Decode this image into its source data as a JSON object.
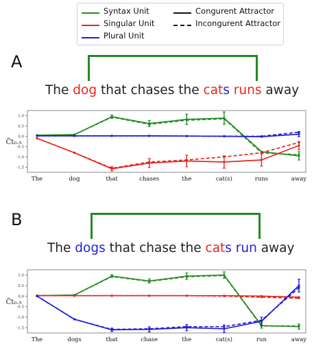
{
  "legend": {
    "items": [
      {
        "label": "Syntax Unit",
        "color": "#228B22",
        "style": "solid"
      },
      {
        "label": "Singular Unit",
        "color": "#e8251e",
        "style": "solid"
      },
      {
        "label": "Plural Unit",
        "color": "#1f1fd6",
        "style": "solid"
      },
      {
        "label": "Congurent Attractor",
        "color": "#111111",
        "style": "solid"
      },
      {
        "label": "Incongurent Attractor",
        "color": "#111111",
        "style": "dashed"
      }
    ]
  },
  "panels": [
    {
      "letter": "A",
      "sentence": [
        {
          "text": "The ",
          "color": "#222222"
        },
        {
          "text": "dog",
          "color": "#e8251e"
        },
        {
          "text": " that chases the ",
          "color": "#222222"
        },
        {
          "text": "cat",
          "color": "#e8251e"
        },
        {
          "text": "s",
          "color": "#1f1fd6"
        },
        {
          "text": " ",
          "color": "#222222"
        },
        {
          "text": "runs",
          "color": "#e8251e"
        },
        {
          "text": " away",
          "color": "#222222"
        }
      ]
    },
    {
      "letter": "B",
      "sentence": [
        {
          "text": "The ",
          "color": "#222222"
        },
        {
          "text": "dogs",
          "color": "#1f1fd6"
        },
        {
          "text": " that chase the ",
          "color": "#222222"
        },
        {
          "text": "cat",
          "color": "#e8251e"
        },
        {
          "text": "s",
          "color": "#1f1fd6"
        },
        {
          "text": " ",
          "color": "#222222"
        },
        {
          "text": "run",
          "color": "#1f1fd6"
        },
        {
          "text": " away",
          "color": "#222222"
        }
      ]
    }
  ],
  "chart_data": [
    {
      "type": "line",
      "ylabel": "C̃t₀.₅",
      "ylim": [
        -1.75,
        1.25
      ],
      "yticks": [
        "1.0",
        "0.5",
        "0.0",
        "-0.5",
        "-1.0",
        "-1.5"
      ],
      "ytick_values": [
        1.0,
        0.5,
        0.0,
        -0.5,
        -1.0,
        -1.5
      ],
      "categories": [
        "The",
        "dog",
        "that",
        "chases",
        "the",
        "cat(s)",
        "runs",
        "away"
      ],
      "grid": false,
      "series": [
        {
          "unit": "Syntax",
          "attractor": "congruent",
          "color": "#228B22",
          "dashed": false,
          "values": [
            0.05,
            0.08,
            0.95,
            0.62,
            0.82,
            0.88,
            -0.75,
            -0.95
          ]
        },
        {
          "unit": "Syntax",
          "attractor": "incongruent",
          "color": "#228B22",
          "dashed": true,
          "values": [
            0.05,
            0.08,
            0.93,
            0.58,
            0.78,
            0.85,
            -0.8,
            -0.9
          ]
        },
        {
          "unit": "Singular",
          "attractor": "congruent",
          "color": "#e8251e",
          "dashed": false,
          "values": [
            -0.1,
            -0.8,
            -1.58,
            -1.3,
            -1.2,
            -1.25,
            -1.15,
            -0.45
          ]
        },
        {
          "unit": "Singular",
          "attractor": "incongruent",
          "color": "#e8251e",
          "dashed": true,
          "values": [
            -0.1,
            -0.8,
            -1.55,
            -1.25,
            -1.15,
            -1.0,
            -0.8,
            -0.3
          ]
        },
        {
          "unit": "Plural",
          "attractor": "congruent",
          "color": "#1f1fd6",
          "dashed": false,
          "values": [
            0.02,
            0.02,
            0.02,
            0.02,
            0.01,
            0.0,
            -0.02,
            0.1
          ]
        },
        {
          "unit": "Plural",
          "attractor": "incongruent",
          "color": "#1f1fd6",
          "dashed": true,
          "values": [
            0.02,
            0.02,
            0.02,
            0.02,
            0.01,
            0.0,
            0.0,
            0.2
          ]
        }
      ],
      "errorbars": [
        {
          "series": 0,
          "index": 2,
          "err": 0.08
        },
        {
          "series": 0,
          "index": 3,
          "err": 0.15
        },
        {
          "series": 0,
          "index": 4,
          "err": 0.25
        },
        {
          "series": 0,
          "index": 5,
          "err": 0.3
        },
        {
          "series": 0,
          "index": 7,
          "err": 0.2
        },
        {
          "series": 2,
          "index": 2,
          "err": 0.1
        },
        {
          "series": 2,
          "index": 3,
          "err": 0.22
        },
        {
          "series": 2,
          "index": 4,
          "err": 0.28
        },
        {
          "series": 2,
          "index": 5,
          "err": 0.3
        },
        {
          "series": 2,
          "index": 6,
          "err": 0.3
        },
        {
          "series": 2,
          "index": 7,
          "err": 0.2
        },
        {
          "series": 4,
          "index": 7,
          "err": 0.12
        }
      ]
    },
    {
      "type": "line",
      "ylabel": "C̃t₀.₅",
      "ylim": [
        -1.75,
        1.25
      ],
      "yticks": [
        "1.0",
        "0.5",
        "0.0",
        "-0.5",
        "-1.0",
        "-1.5"
      ],
      "ytick_values": [
        1.0,
        0.5,
        0.0,
        -0.5,
        -1.0,
        -1.5
      ],
      "categories": [
        "The",
        "dogs",
        "that",
        "chase",
        "the",
        "cat(s)",
        "run",
        "away"
      ],
      "grid": false,
      "series": [
        {
          "unit": "Syntax",
          "attractor": "congruent",
          "color": "#228B22",
          "dashed": false,
          "values": [
            0.02,
            0.05,
            0.95,
            0.72,
            0.95,
            1.0,
            -1.4,
            -1.45
          ]
        },
        {
          "unit": "Syntax",
          "attractor": "incongruent",
          "color": "#228B22",
          "dashed": true,
          "values": [
            0.02,
            0.05,
            0.93,
            0.7,
            0.92,
            0.98,
            -1.42,
            -1.42
          ]
        },
        {
          "unit": "Singular",
          "attractor": "congruent",
          "color": "#e8251e",
          "dashed": false,
          "values": [
            0.02,
            0.02,
            0.02,
            0.02,
            0.02,
            0.02,
            0.0,
            -0.05
          ]
        },
        {
          "unit": "Singular",
          "attractor": "incongruent",
          "color": "#e8251e",
          "dashed": true,
          "values": [
            0.02,
            0.02,
            0.02,
            0.02,
            0.02,
            0.0,
            -0.05,
            -0.1
          ]
        },
        {
          "unit": "Plural",
          "attractor": "congruent",
          "color": "#1f1fd6",
          "dashed": false,
          "values": [
            0.0,
            -1.1,
            -1.6,
            -1.58,
            -1.5,
            -1.55,
            -1.2,
            0.5
          ]
        },
        {
          "unit": "Plural",
          "attractor": "incongruent",
          "color": "#1f1fd6",
          "dashed": true,
          "values": [
            0.0,
            -1.1,
            -1.58,
            -1.55,
            -1.45,
            -1.45,
            -1.15,
            0.4
          ]
        }
      ],
      "errorbars": [
        {
          "series": 0,
          "index": 2,
          "err": 0.06
        },
        {
          "series": 0,
          "index": 3,
          "err": 0.1
        },
        {
          "series": 0,
          "index": 4,
          "err": 0.15
        },
        {
          "series": 0,
          "index": 5,
          "err": 0.15
        },
        {
          "series": 0,
          "index": 6,
          "err": 0.12
        },
        {
          "series": 0,
          "index": 7,
          "err": 0.12
        },
        {
          "series": 4,
          "index": 2,
          "err": 0.08
        },
        {
          "series": 4,
          "index": 3,
          "err": 0.12
        },
        {
          "series": 4,
          "index": 4,
          "err": 0.15
        },
        {
          "series": 4,
          "index": 5,
          "err": 0.18
        },
        {
          "series": 4,
          "index": 6,
          "err": 0.2
        },
        {
          "series": 4,
          "index": 7,
          "err": 0.3
        }
      ]
    }
  ]
}
